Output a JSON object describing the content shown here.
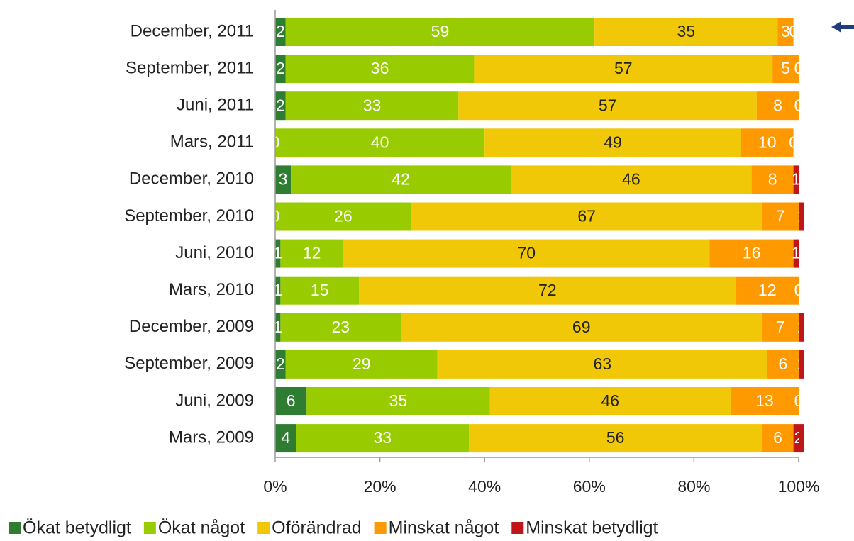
{
  "chart_data": {
    "type": "bar",
    "orientation": "horizontal",
    "stacked": true,
    "categories": [
      "December, 2011",
      "September, 2011",
      "Juni, 2011",
      "Mars, 2011",
      "December, 2010",
      "September, 2010",
      "Juni, 2010",
      "Mars, 2010",
      "December, 2009",
      "September, 2009",
      "Juni, 2009",
      "Mars, 2009"
    ],
    "series": [
      {
        "name": "Ökat betydligt",
        "color": "#2e7d32",
        "values": [
          2,
          2,
          2,
          0,
          3,
          0,
          1,
          1,
          1,
          2,
          6,
          4
        ]
      },
      {
        "name": "Ökat något",
        "color": "#99cc00",
        "values": [
          59,
          36,
          33,
          40,
          42,
          26,
          12,
          15,
          23,
          29,
          35,
          33
        ]
      },
      {
        "name": "Oförändrad",
        "color": "#f0c808",
        "values": [
          35,
          57,
          57,
          49,
          46,
          67,
          70,
          72,
          69,
          63,
          46,
          56
        ]
      },
      {
        "name": "Minskat något",
        "color": "#ff9900",
        "values": [
          3,
          5,
          8,
          10,
          8,
          7,
          16,
          12,
          7,
          6,
          13,
          6
        ]
      },
      {
        "name": "Minskat betydligt",
        "color": "#c0161a",
        "values": [
          0,
          0,
          0,
          0,
          1,
          1,
          1,
          0,
          1,
          1,
          0,
          2
        ]
      }
    ],
    "xlim": [
      0,
      100
    ],
    "xticks": [
      {
        "value": 0,
        "label": "0%"
      },
      {
        "value": 20,
        "label": "20%"
      },
      {
        "value": 40,
        "label": "40%"
      },
      {
        "value": 60,
        "label": "60%"
      },
      {
        "value": 80,
        "label": "80%"
      },
      {
        "value": 100,
        "label": "100%"
      }
    ],
    "legend": "bottom"
  }
}
